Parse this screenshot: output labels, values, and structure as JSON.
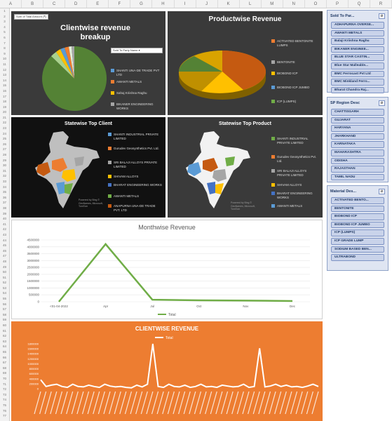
{
  "columns": [
    "A",
    "B",
    "C",
    "D",
    "E",
    "F",
    "G",
    "H",
    "I",
    "J",
    "K",
    "L",
    "M",
    "N",
    "O",
    "P",
    "Q",
    "R"
  ],
  "rows": [
    "1",
    "2",
    "3",
    "4",
    "5",
    "6",
    "7",
    "8",
    "9",
    "10",
    "11",
    "12",
    "13",
    "14",
    "15",
    "16",
    "17",
    "18",
    "19",
    "20",
    "21",
    "22",
    "23",
    "24",
    "25",
    "26",
    "27",
    "28",
    "29",
    "30",
    "31",
    "32",
    "33",
    "34",
    "35",
    "36",
    "37",
    "38",
    "39",
    "40",
    "41",
    "42",
    "43",
    "44",
    "45",
    "46",
    "47",
    "48",
    "49",
    "50",
    "51",
    "52",
    "53",
    "54",
    "55",
    "56",
    "57",
    "58",
    "59",
    "60",
    "61",
    "62",
    "63",
    "64",
    "65",
    "66",
    "67",
    "68",
    "69",
    "70",
    "71",
    "72",
    "73",
    "74",
    "75",
    "76",
    "77"
  ],
  "clientwise_pie": {
    "title": "Clientwise revenue breakup",
    "filter_button": "Sum of Total Amount (₹)",
    "dropdown": "Sold To Party Name",
    "legend": [
      "SHANTI UNA-DE TRADE PVT LTD",
      "AWANTI METALS",
      "Sahaj Kriishna Raghu",
      "BIKANER ENGINEERING WORKS"
    ],
    "colors": [
      "#5b9bd5",
      "#ed7d31",
      "#ffc000",
      "#a5a5a5"
    ]
  },
  "productwise_pie": {
    "title": "Productwise Revenue",
    "legend": [
      "ACTIVATED BENTONITE LUMPS",
      "BENTONITE",
      "BIOBOND ICP",
      "BIOBOND ICP JUMBO",
      "ICP (LUMPS)"
    ],
    "colors": [
      "#ed7d31",
      "#a5a5a5",
      "#ffc000",
      "#5b9bd5",
      "#70ad47"
    ]
  },
  "statewise_client": {
    "title": "Statewise Top Client",
    "legend": [
      "SHANTI INDUSTRIAL PRIVATE LIMITED",
      "Gurudev Geosynthetics Pvt. Ltd.",
      "SRI BALAJI ALLOYS PRIVATE LIMITED",
      "SHIVAM ALLOYS",
      "BHARAT ENGINEERING WORKS",
      "AWANTI METALS",
      "ANAPURNA UNA-DE TRADE PVT. LTD"
    ],
    "colors": [
      "#5b9bd5",
      "#ed7d31",
      "#a5a5a5",
      "#ffc000",
      "#4472c4",
      "#70ad47",
      "#c55a11"
    ],
    "credit": "Powered by Bing © GeoNames, Microsoft, TomTom"
  },
  "statewise_product": {
    "title": "Statewise Top Product",
    "legend": [
      "SHANTI INDUSTRIAL PRIVATE LIMITED",
      "Gurudev Geosynthetics Pvt. Ltd.",
      "SRI BALAJI ALLOYS PRIVATE LIMITED",
      "SHIVAM ALLOYS",
      "BHARAT ENGINEERING WORKS",
      "AWANTI METALS"
    ],
    "colors": [
      "#70ad47",
      "#ed7d31",
      "#a5a5a5",
      "#ffc000",
      "#4472c4",
      "#5b9bd5"
    ],
    "credit": "Powered by Bing © GeoNames, Microsoft, TomTom"
  },
  "slicers": {
    "sold_to": {
      "title": "Sold To Par...",
      "items": [
        "ADHAPURNA OVERSE...",
        "AWANTI METALS",
        "Balaji Kriishna Raghu",
        "BIKANER ENGINEE...",
        "BLUE STAR CASTIN...",
        "Blue Star Malleable...",
        "BMC Ferrocast Pvt Ltd",
        "BMC Minkland Ferro...",
        "Bharat Chandra Raj..."
      ]
    },
    "region": {
      "title": "SP Region Desc",
      "items": [
        "CHATTISGARH",
        "GUJARAT",
        "HARYANA",
        "JHARKHAND",
        "KARNATAKA",
        "MAHARASHTRA",
        "ODISHA",
        "RAJASTHAN",
        "TAMIL NADU"
      ]
    },
    "material": {
      "title": "Material Des...",
      "items": [
        "ACTIVATED BENTO...",
        "BENTONITE",
        "BIOBOND ICP",
        "BIOBOND ICP JUMBO",
        "ICP (LUMPS)",
        "ICP GRADE LUMP",
        "SODIUM BASED BEN...",
        "ULTRABOND"
      ]
    }
  },
  "monthwise": {
    "legend": "Total",
    "chart_data": {
      "type": "line",
      "title": "Monthwise Revenue",
      "categories": [
        "<01-04-2022",
        "Apr",
        "Jul",
        "Oct",
        "Nov",
        "Dec"
      ],
      "series": [
        {
          "name": "Total",
          "values": [
            0,
            4200000,
            150000,
            100000,
            80000,
            50000
          ]
        }
      ],
      "y_ticks": [
        "4500000",
        "4000000",
        "3500000",
        "3000000",
        "2500000",
        "2000000",
        "1500000",
        "1000000",
        "500000",
        "0"
      ],
      "ylim": [
        0,
        4500000
      ],
      "color": "#70ad47"
    }
  },
  "clientwise_line": {
    "legend": "Total",
    "chart_data": {
      "type": "line",
      "title": "CLIENTWISE REVENUE",
      "values": [
        0.2,
        0.05,
        0.08,
        0.1,
        0.05,
        0.03,
        0.1,
        0.05,
        0.04,
        0.08,
        0.05,
        0.03,
        0.1,
        0.06,
        0.04,
        0.05,
        0.03,
        0.02,
        0.08,
        0.04,
        0.1,
        1.0,
        0.05,
        0.03,
        0.1,
        0.05,
        0.04,
        0.08,
        0.03,
        0.05,
        0.1,
        0.04,
        0.05,
        0.03,
        0.08,
        0.06,
        0.04,
        0.05,
        0.1,
        0.03,
        0.05,
        0.9,
        0.04,
        0.06,
        0.1,
        0.05,
        0.08,
        0.04,
        0.05,
        0.03,
        0.06,
        0.1,
        0.05
      ],
      "y_ticks": [
        "1800000",
        "1600000",
        "1400000",
        "1200000",
        "1000000",
        "800000",
        "600000",
        "400000",
        "200000",
        "0"
      ],
      "color": "#ffffff"
    }
  }
}
